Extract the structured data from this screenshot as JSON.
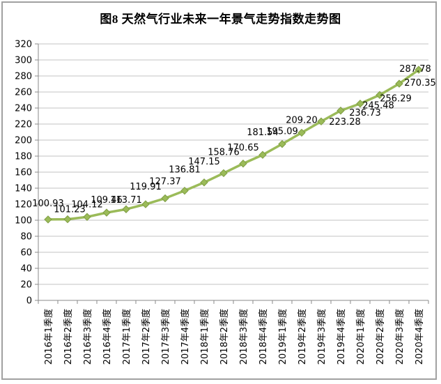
{
  "frame": {
    "border_color": "#a1a1a1"
  },
  "chart_data": {
    "type": "line",
    "title": "图8 天然气行业未来一年景气走势指数走势图",
    "categories": [
      "2016年1季度",
      "2016年2季度",
      "2016年3季度",
      "2016年4季度",
      "2017年1季度",
      "2017年2季度",
      "2017年3季度",
      "2017年4季度",
      "2018年1季度",
      "2018年2季度",
      "2018年3季度",
      "2018年4季度",
      "2019年1季度",
      "2019年2季度",
      "2019年3季度",
      "2019年4季度",
      "2020年1季度",
      "2020年2季度",
      "2020年3季度",
      "2020年4季度"
    ],
    "values": [
      100.93,
      101.23,
      104.12,
      109.46,
      113.71,
      119.91,
      127.37,
      136.81,
      147.15,
      158.76,
      170.65,
      181.54,
      195.09,
      209.2,
      223.28,
      236.73,
      245.48,
      256.29,
      270.35,
      287.78
    ],
    "data_labels": [
      "100.93",
      "101.23",
      "104.12",
      "109.46",
      "113.71",
      "119.91",
      "127.37",
      "136.81",
      "147.15",
      "158.76",
      "170.65",
      "181.54",
      "195.09",
      "209.20",
      "223.28",
      "236.73",
      "245.48",
      "256.29",
      "270.35",
      "287.78"
    ],
    "xlabel": "",
    "ylabel": "",
    "ylim": [
      0,
      320
    ],
    "ytick_step": 20,
    "grid": true,
    "legend_position": "none",
    "marker": "diamond",
    "line_color": "#9bbb59",
    "marker_color": "#9bbb59",
    "marker_edge_color": "#7e9d43",
    "grid_color": "#c3c3c3",
    "axis_color": "#8a8a8a",
    "text_color": "#000000",
    "label_offsets": {
      "0": [
        0,
        -5
      ],
      "1": [
        3,
        4
      ],
      "4": [
        0,
        5
      ],
      "5": [
        0,
        -7
      ],
      "6": [
        0,
        -6
      ],
      "7": [
        0,
        -12
      ],
      "8": [
        0,
        -12
      ],
      "9": [
        0,
        -12
      ],
      "10": [
        0,
        -5
      ],
      "11": [
        0,
        -14
      ],
      "14": [
        34,
        19
      ],
      "15": [
        35,
        21
      ],
      "16": [
        26,
        21
      ],
      "17": [
        23,
        23
      ],
      "18": [
        30,
        17
      ],
      "19": [
        -5,
        17
      ]
    }
  }
}
